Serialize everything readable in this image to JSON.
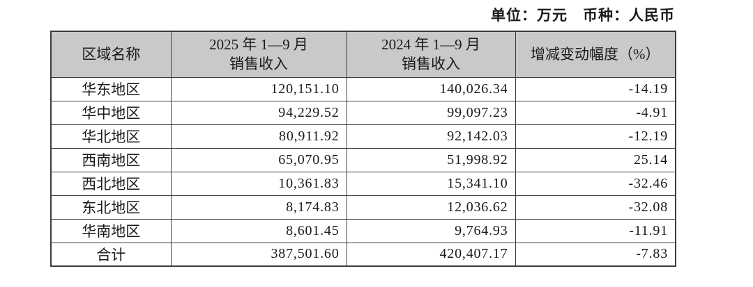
{
  "meta": {
    "unit_line": "单位：万元　币种：人民币"
  },
  "table": {
    "columns": {
      "region": {
        "label": "区域名称"
      },
      "rev_2025": {
        "label_line1": "2025 年 1—9 月",
        "label_line2": "销售收入"
      },
      "rev_2024": {
        "label_line1": "2024 年 1—9 月",
        "label_line2": "销售收入"
      },
      "change_pct": {
        "label": "增减变动幅度（%）"
      }
    },
    "rows": [
      {
        "region": "华东地区",
        "rev_2025": "120,151.10",
        "rev_2024": "140,026.34",
        "change_pct": "-14.19"
      },
      {
        "region": "华中地区",
        "rev_2025": "94,229.52",
        "rev_2024": "99,097.23",
        "change_pct": "-4.91"
      },
      {
        "region": "华北地区",
        "rev_2025": "80,911.92",
        "rev_2024": "92,142.03",
        "change_pct": "-12.19"
      },
      {
        "region": "西南地区",
        "rev_2025": "65,070.95",
        "rev_2024": "51,998.92",
        "change_pct": "25.14"
      },
      {
        "region": "西北地区",
        "rev_2025": "10,361.83",
        "rev_2024": "15,341.10",
        "change_pct": "-32.46"
      },
      {
        "region": "东北地区",
        "rev_2025": "8,174.83",
        "rev_2024": "12,036.62",
        "change_pct": "-32.08"
      },
      {
        "region": "华南地区",
        "rev_2025": "8,601.45",
        "rev_2024": "9,764.93",
        "change_pct": "-11.91"
      },
      {
        "region": "合计",
        "rev_2025": "387,501.60",
        "rev_2024": "420,407.17",
        "change_pct": "-7.83"
      }
    ],
    "colors": {
      "header_bg": "#c9c9c9",
      "border": "#3c3c3c",
      "text": "#1a1a1a",
      "background": "#ffffff"
    }
  }
}
